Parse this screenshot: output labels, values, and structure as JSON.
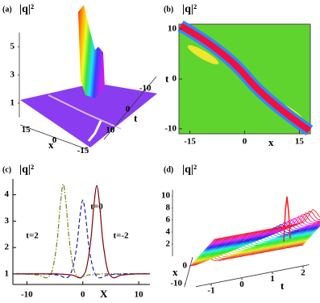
{
  "chart_data": [
    {
      "type": "surface",
      "label": "(a)",
      "title": "|q|²",
      "xlabel": "x",
      "ylabel": "t",
      "xlim": [
        18,
        -18
      ],
      "xticks": [
        15,
        0,
        -15
      ],
      "ylim": [
        15,
        -15
      ],
      "yticks": [
        10,
        0,
        -10
      ],
      "zlim": [
        0,
        6
      ],
      "zticks": [
        1,
        3,
        5
      ]
    },
    {
      "type": "heatmap",
      "label": "(b)",
      "title": "|q|²",
      "xlabel": "x",
      "ylabel": "t",
      "xlim": [
        -18,
        18
      ],
      "xticks": [
        -15,
        0,
        15
      ],
      "ylim": [
        -11,
        11
      ],
      "yticks": [
        10,
        0,
        -10
      ]
    },
    {
      "type": "line",
      "label": "(c)",
      "title": "|q|²",
      "xlabel": "X",
      "x": [
        -12,
        -11.5,
        -11,
        -10.5,
        -10,
        -9.5,
        -9,
        -8.5,
        -8,
        -7.5,
        -7,
        -6.5,
        -6,
        -5.5,
        -5,
        -4.5,
        -4,
        -3.5,
        -3,
        -2.5,
        -2,
        -1.5,
        -1,
        -0.5,
        0,
        0.5,
        1,
        1.5,
        2,
        2.5,
        3,
        3.5,
        4,
        4.5,
        5,
        5.5,
        6,
        6.5,
        7,
        7.5,
        8,
        8.5,
        9,
        9.5,
        10,
        10.5,
        11,
        11.5,
        12
      ],
      "xlim": [
        -12.5,
        12
      ],
      "xticks": [
        -10,
        0,
        10
      ],
      "ylim": [
        0.6,
        4.6
      ],
      "yticks": [
        1,
        2,
        3,
        4
      ],
      "series": [
        {
          "name": "t=2",
          "color": "#7d7d1a",
          "dash": "6 2 1.5 2",
          "values": [
            1,
            1,
            1,
            1,
            0.99,
            0.99,
            0.98,
            0.97,
            0.96,
            0.93,
            0.88,
            0.85,
            0.92,
            1.1,
            1.62,
            2.43,
            3.67,
            4.4,
            3.67,
            2.43,
            1.62,
            1.1,
            0.92,
            0.85,
            0.88,
            0.93,
            0.96,
            0.97,
            0.98,
            0.99,
            0.99,
            1,
            1,
            1,
            1,
            1,
            1,
            1,
            1,
            1,
            1,
            1,
            1,
            1,
            1,
            1,
            1,
            1,
            1
          ]
        },
        {
          "name": "t=0",
          "color": "#1c1cb0",
          "dash": "5 3",
          "values": [
            1,
            1,
            1,
            1,
            1,
            1,
            1,
            1,
            1,
            1,
            1,
            0.99,
            0.99,
            0.98,
            0.97,
            0.96,
            0.93,
            0.88,
            0.85,
            0.9,
            1.1,
            1.51,
            2.18,
            3.2,
            3.8,
            3.2,
            2.18,
            1.51,
            1.1,
            0.9,
            0.85,
            0.88,
            0.93,
            0.96,
            0.97,
            0.98,
            0.99,
            0.99,
            1,
            1,
            1,
            1,
            1,
            1,
            1,
            1,
            1,
            1,
            1
          ]
        },
        {
          "name": "t=-2",
          "color": "#7a0010",
          "dash": "none",
          "values": [
            1,
            1,
            1,
            1,
            1,
            1,
            1,
            1,
            1,
            1,
            1,
            1,
            1,
            1,
            1,
            1,
            0.99,
            0.99,
            0.98,
            0.97,
            0.96,
            0.93,
            0.88,
            0.85,
            0.92,
            1.1,
            1.61,
            2.41,
            3.63,
            4.35,
            3.63,
            2.41,
            1.61,
            1.1,
            0.92,
            0.85,
            0.88,
            0.93,
            0.96,
            0.97,
            0.98,
            0.99,
            0.99,
            1,
            1,
            1,
            1,
            1,
            1
          ]
        }
      ]
    },
    {
      "type": "waterfall",
      "label": "(d)",
      "title": "|q|²",
      "xlabel": "x",
      "ylabel": "t",
      "xlim": [
        5,
        -12
      ],
      "xticks": [
        0,
        -10
      ],
      "ylim": [
        -1.5,
        2.2
      ],
      "yticks": [
        -1,
        0,
        1,
        2
      ],
      "zlim": [
        0,
        11
      ],
      "zticks": [
        2,
        4,
        6,
        8,
        10
      ]
    }
  ]
}
